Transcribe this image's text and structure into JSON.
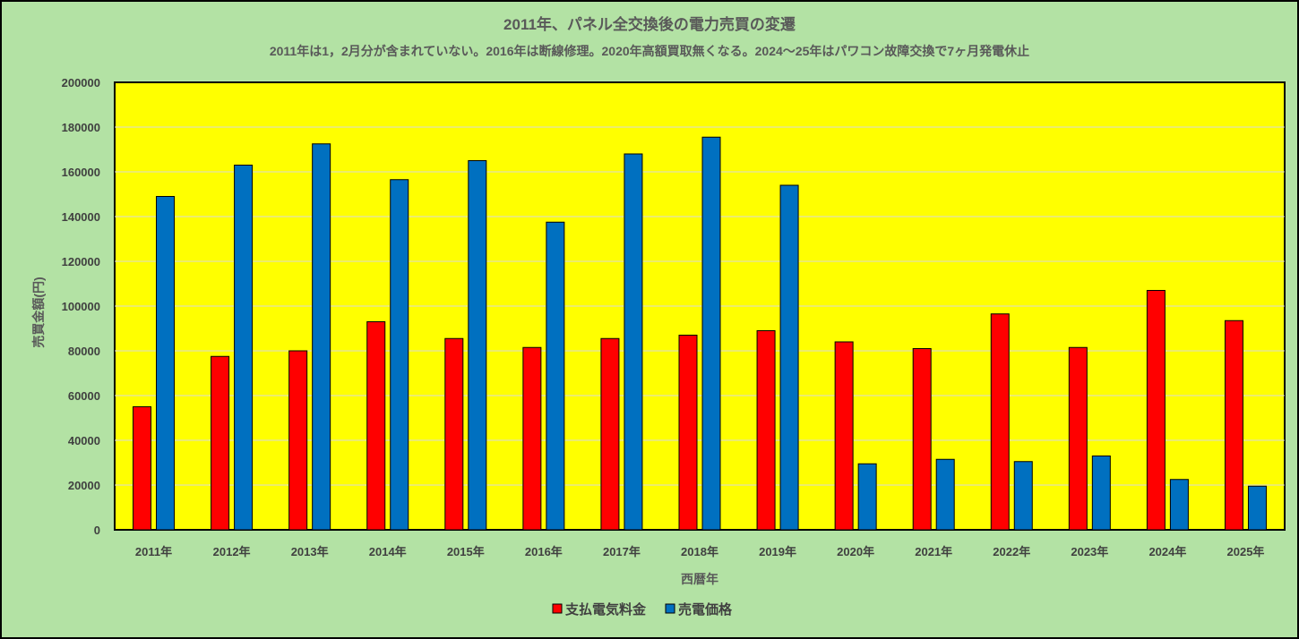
{
  "chart_data": {
    "type": "bar",
    "title": "2011年、パネル全交換後の電力売買の変遷",
    "subtitle": "2011年は1，2月分が含まれていない。2016年は断線修理。2020年高額買取無くなる。2024～25年はパワコン故障交換で7ヶ月発電休止",
    "xlabel": "西暦年",
    "ylabel": "売買金額(円)",
    "ylim": [
      0,
      200000
    ],
    "yticks": [
      0,
      20000,
      40000,
      60000,
      80000,
      100000,
      120000,
      140000,
      160000,
      180000,
      200000
    ],
    "grid": true,
    "legend_position": "bottom",
    "categories": [
      "2011年",
      "2012年",
      "2013年",
      "2014年",
      "2015年",
      "2016年",
      "2017年",
      "2018年",
      "2019年",
      "2020年",
      "2021年",
      "2022年",
      "2023年",
      "2024年",
      "2025年"
    ],
    "series": [
      {
        "name": "支払電気料金",
        "color": "#ff0000",
        "values": [
          55000,
          77500,
          80000,
          93000,
          85500,
          81500,
          85500,
          87000,
          89000,
          84000,
          81000,
          96500,
          81500,
          107000,
          93500
        ]
      },
      {
        "name": "売電価格",
        "color": "#0070c0",
        "values": [
          149000,
          163000,
          172500,
          156500,
          165000,
          137500,
          168000,
          175500,
          154000,
          29500,
          31500,
          30500,
          33000,
          22500,
          19500
        ]
      }
    ],
    "plot_background": "#ffff00",
    "chart_background": "#b3e2a4"
  }
}
